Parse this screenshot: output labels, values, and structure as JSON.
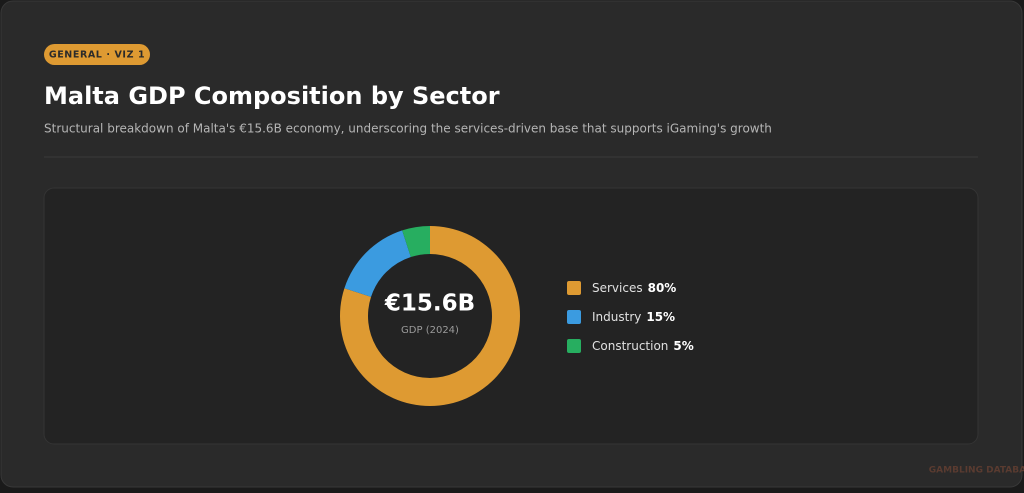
{
  "badge": "GENERAL · VIZ 1",
  "watermark": "GAMBLING DATABASES",
  "chart_data": {
    "type": "pie",
    "title": "Malta GDP Composition by Sector",
    "subtitle": "Structural breakdown of Malta's €15.6B economy, underscoring the services-driven base that supports iGaming's growth",
    "center_label": "€15.6B",
    "center_sublabel": "GDP (2024)",
    "categories": [
      "Services",
      "Industry",
      "Construction"
    ],
    "values": [
      80,
      15,
      5
    ],
    "value_labels": [
      "80%",
      "15%",
      "5%"
    ],
    "colors": [
      "#de9a32",
      "#3b9be0",
      "#27ae60"
    ],
    "donut": true
  }
}
